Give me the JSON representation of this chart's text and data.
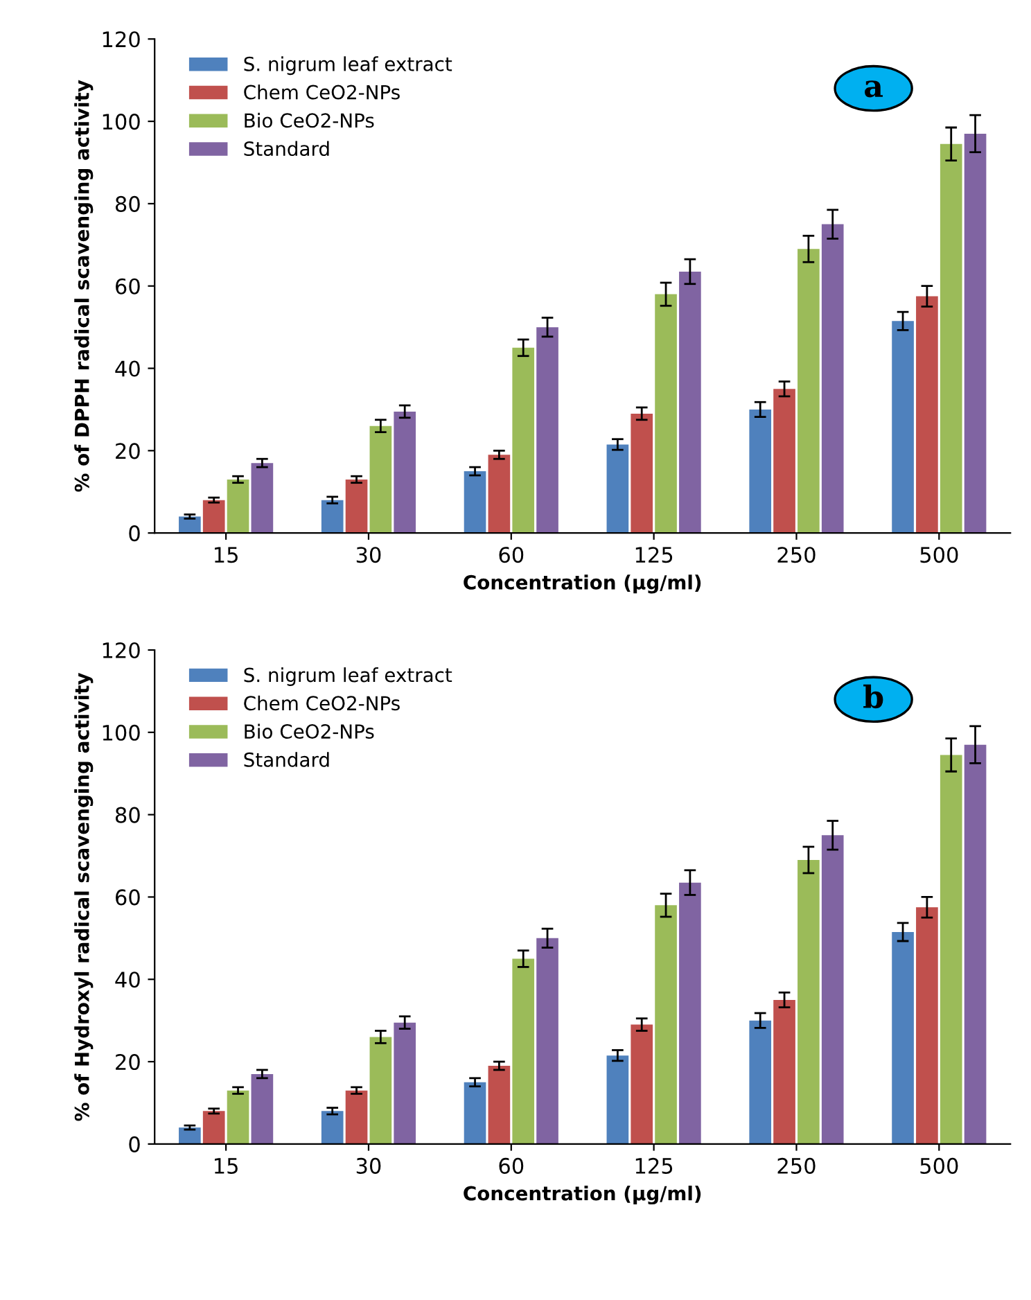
{
  "chart_data": [
    {
      "type": "bar",
      "xlabel": "Concentration (µg/ml)",
      "ylabel": "% of DPPH radical scavenging activity",
      "annotations": [
        "a"
      ],
      "categories": [
        "15",
        "30",
        "60",
        "125",
        "250",
        "500"
      ],
      "series": [
        {
          "name": "S. nigrum leaf extract",
          "color": "#4f81bd",
          "values": [
            4,
            8,
            15,
            21.5,
            30,
            51.5
          ],
          "errors": [
            0.5,
            0.8,
            1,
            1.3,
            1.8,
            2.2
          ]
        },
        {
          "name": "Chem CeO2-NPs",
          "color": "#c0504d",
          "values": [
            8,
            13,
            19,
            29,
            35,
            57.5
          ],
          "errors": [
            0.6,
            0.8,
            1,
            1.5,
            1.8,
            2.5
          ]
        },
        {
          "name": "Bio CeO2-NPs",
          "color": "#9bbb59",
          "values": [
            13,
            26,
            45,
            58,
            69,
            94.5
          ],
          "errors": [
            0.8,
            1.5,
            2,
            2.8,
            3.2,
            4
          ]
        },
        {
          "name": "Standard",
          "color": "#8064a2",
          "values": [
            17,
            29.5,
            50,
            63.5,
            75,
            97
          ],
          "errors": [
            1,
            1.5,
            2.3,
            3,
            3.5,
            4.5
          ]
        }
      ],
      "ylim": [
        0,
        120
      ],
      "yticks": [
        0,
        20,
        40,
        60,
        80,
        100,
        120
      ],
      "legend": "top left",
      "grid": false
    },
    {
      "type": "bar",
      "xlabel": "Concentration (µg/ml)",
      "ylabel": "% of Hydroxyl radical scavenging activity",
      "annotations": [
        "b"
      ],
      "categories": [
        "15",
        "30",
        "60",
        "125",
        "250",
        "500"
      ],
      "series": [
        {
          "name": "S. nigrum leaf extract",
          "color": "#4f81bd",
          "values": [
            4,
            8,
            15,
            21.5,
            30,
            51.5
          ],
          "errors": [
            0.5,
            0.8,
            1,
            1.3,
            1.8,
            2.2
          ]
        },
        {
          "name": "Chem CeO2-NPs",
          "color": "#c0504d",
          "values": [
            8,
            13,
            19,
            29,
            35,
            57.5
          ],
          "errors": [
            0.6,
            0.8,
            1,
            1.5,
            1.8,
            2.5
          ]
        },
        {
          "name": "Bio CeO2-NPs",
          "color": "#9bbb59",
          "values": [
            13,
            26,
            45,
            58,
            69,
            94.5
          ],
          "errors": [
            0.8,
            1.5,
            2,
            2.8,
            3.2,
            4
          ]
        },
        {
          "name": "Standard",
          "color": "#8064a2",
          "values": [
            17,
            29.5,
            50,
            63.5,
            75,
            97
          ],
          "errors": [
            1,
            1.5,
            2.3,
            3,
            3.5,
            4.5
          ]
        }
      ],
      "ylim": [
        0,
        120
      ],
      "yticks": [
        0,
        20,
        40,
        60,
        80,
        100,
        120
      ],
      "legend": "top left",
      "grid": false
    }
  ]
}
